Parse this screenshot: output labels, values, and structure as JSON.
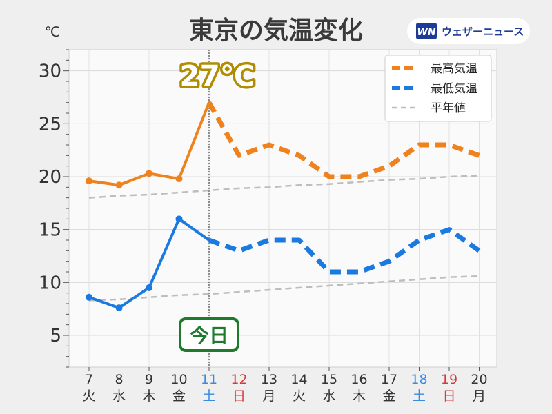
{
  "header": {
    "title": "東京の気温変化",
    "unit": "℃",
    "brand": {
      "logo_text": "WN",
      "name": "ウェザーニュース",
      "logo_color": "#1e3c96"
    }
  },
  "annotations": {
    "peak_label": "27℃",
    "today_label": "今日",
    "peak_label_color": "#b08c00",
    "today_label_color": "#1f7a2e"
  },
  "colors": {
    "max": "#f0821e",
    "min": "#1a7ae0",
    "normal": "#bdbdbd",
    "saturday": "#3a8be0",
    "sunday": "#d83a3a",
    "weekday": "#333333"
  },
  "chart_data": {
    "type": "line",
    "title": "東京の気温変化",
    "ylabel": "℃",
    "ylim": [
      2,
      32
    ],
    "yticks": [
      5,
      10,
      15,
      20,
      25,
      30
    ],
    "grid": true,
    "legend_position": "top-right",
    "categories": [
      {
        "date": "7",
        "weekday": "火",
        "type": "weekday"
      },
      {
        "date": "8",
        "weekday": "水",
        "type": "weekday"
      },
      {
        "date": "9",
        "weekday": "木",
        "type": "weekday"
      },
      {
        "date": "10",
        "weekday": "金",
        "type": "weekday"
      },
      {
        "date": "11",
        "weekday": "土",
        "type": "saturday"
      },
      {
        "date": "12",
        "weekday": "日",
        "type": "sunday"
      },
      {
        "date": "13",
        "weekday": "月",
        "type": "weekday"
      },
      {
        "date": "14",
        "weekday": "火",
        "type": "weekday"
      },
      {
        "date": "15",
        "weekday": "水",
        "type": "weekday"
      },
      {
        "date": "16",
        "weekday": "木",
        "type": "weekday"
      },
      {
        "date": "17",
        "weekday": "金",
        "type": "weekday"
      },
      {
        "date": "18",
        "weekday": "土",
        "type": "saturday"
      },
      {
        "date": "19",
        "weekday": "日",
        "type": "sunday"
      },
      {
        "date": "20",
        "weekday": "月",
        "type": "weekday"
      }
    ],
    "today": "11",
    "series": [
      {
        "name": "最高気温",
        "values": [
          19.6,
          19.2,
          20.3,
          19.8,
          27,
          22,
          23,
          22,
          20,
          20,
          21,
          23,
          23,
          22
        ]
      },
      {
        "name": "最低気温",
        "values": [
          8.6,
          7.6,
          9.5,
          16.0,
          14,
          13,
          14,
          14,
          11,
          11,
          12,
          14,
          15,
          13
        ]
      },
      {
        "name": "平年値",
        "values_max": [
          18.0,
          18.2,
          18.3,
          18.5,
          18.7,
          18.9,
          19.0,
          19.2,
          19.3,
          19.5,
          19.7,
          19.8,
          20.0,
          20.1
        ],
        "values_min": [
          8.3,
          8.4,
          8.6,
          8.8,
          8.9,
          9.1,
          9.3,
          9.5,
          9.7,
          9.9,
          10.1,
          10.3,
          10.5,
          10.6
        ]
      }
    ]
  }
}
